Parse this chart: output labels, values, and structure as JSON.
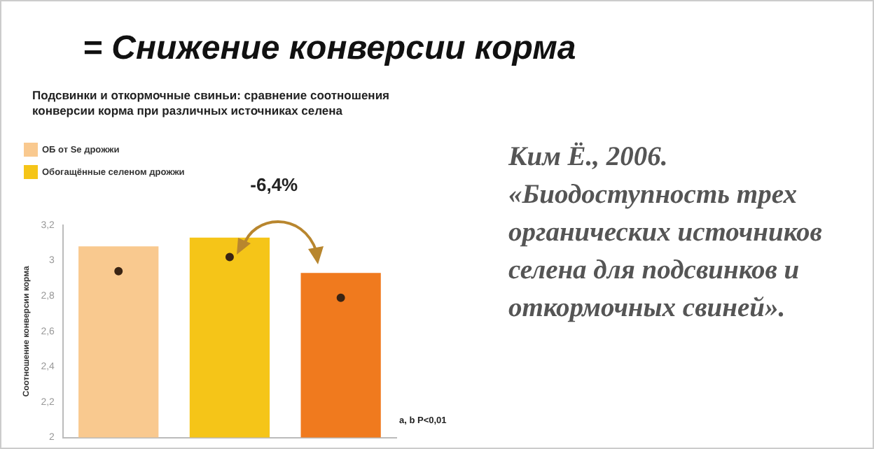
{
  "chart_data": {
    "type": "bar",
    "title": "= Снижение  конверсии корма",
    "subtitle": "Подсвинки и откормочные свиньи: сравнение соотношения конверсии корма при различных источниках селена",
    "ylabel": "Соотношение конверсии корма",
    "categories": [
      null,
      null,
      null
    ],
    "series": [
      {
        "name": "ОБ от Se дрожжи",
        "color": "#f9c98f",
        "values": [
          3.08,
          null,
          null
        ]
      },
      {
        "name": "Обогащённые селеном дрожжи",
        "color": "#f5c518",
        "values": [
          null,
          3.13,
          null
        ]
      },
      {
        "color": "#f07a1e",
        "values": [
          null,
          null,
          2.93
        ]
      },
      {
        "type": "scatter",
        "color": "#3a2414",
        "values": [
          2.94,
          3.02,
          2.79
        ]
      }
    ],
    "ylim": [
      2,
      3.2
    ],
    "yticks": [
      2,
      {
        "value": 2.2,
        "label": "2,2"
      },
      {
        "value": 2.4,
        "label": "2,4"
      },
      {
        "value": 2.6,
        "label": "2,6"
      },
      {
        "value": 2.8,
        "label": "2,8"
      },
      3,
      {
        "value": 3.2,
        "label": "3,2"
      }
    ],
    "grid": false,
    "legend": "top left",
    "marker": "circle",
    "annotations": [
      "-6,4%",
      "a, b P<0,01",
      "Ким Ё., 2006. «Биодоступность трех органических источников селена для подсвинков и откормочных свиней»."
    ]
  }
}
